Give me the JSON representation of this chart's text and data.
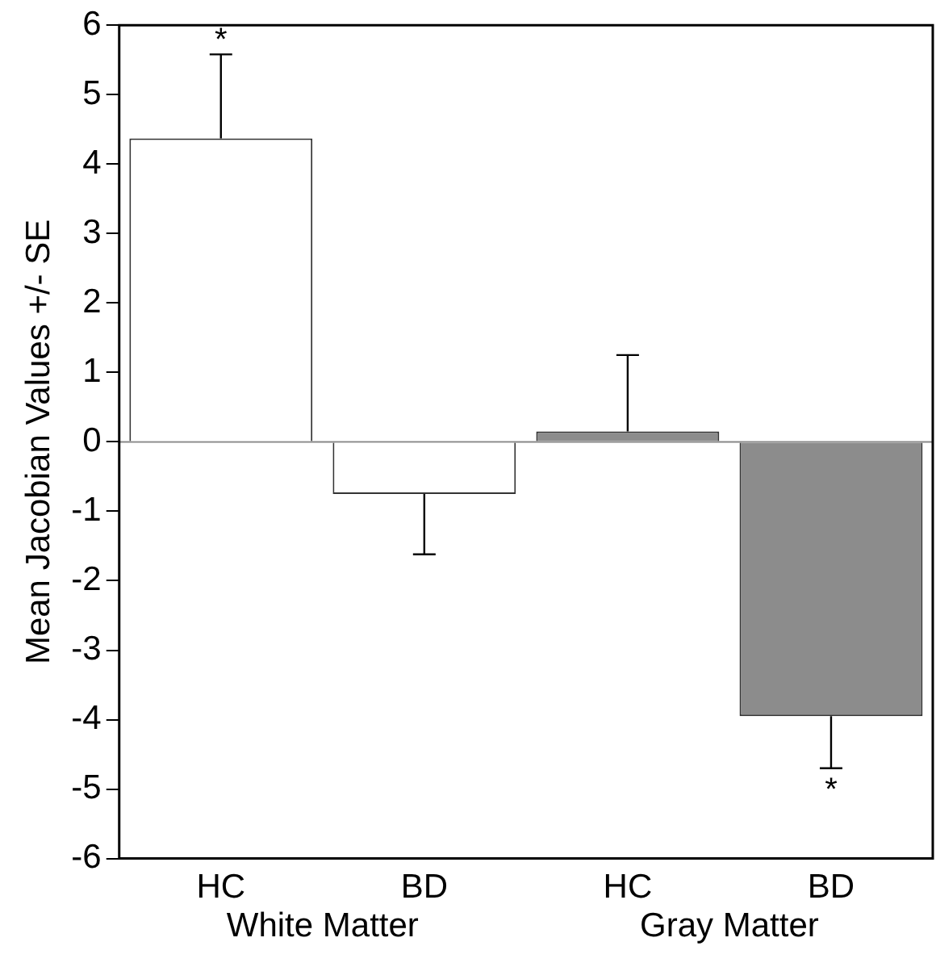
{
  "chart_data": {
    "type": "bar",
    "ylabel": "Mean Jacobian Values +/- SE",
    "categories": [
      "HC",
      "BD",
      "HC",
      "BD"
    ],
    "values": [
      4.37,
      -0.75,
      0.15,
      -3.95
    ],
    "colors": [
      "#ffffff",
      "#ffffff",
      "#8c8c8c",
      "#8c8c8c"
    ],
    "errors": [
      1.21,
      0.87,
      1.1,
      0.75
    ],
    "ref_lines": [
      {
        "axis": "y",
        "value": 0,
        "color": "#888888"
      }
    ],
    "ylim": [
      -6,
      6
    ],
    "yticks": [
      -6,
      -5,
      -4,
      -3,
      -2,
      -1,
      0,
      1,
      2,
      3,
      4,
      5,
      6
    ],
    "grid": false,
    "legend": false,
    "value_labels": [
      "*",
      null,
      null,
      "*"
    ],
    "annotations": [
      "White Matter",
      "Gray Matter"
    ]
  }
}
